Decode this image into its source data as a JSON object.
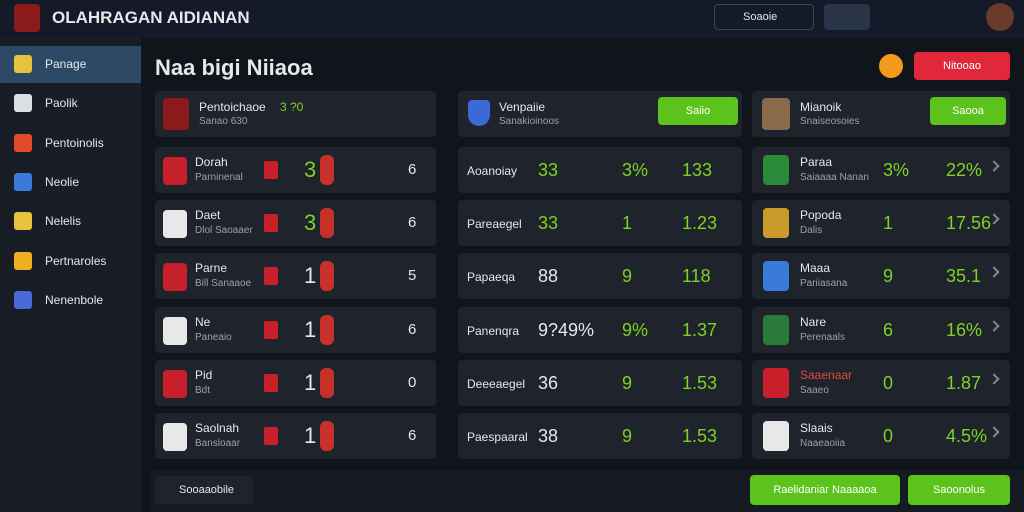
{
  "header": {
    "brand": "OLAHRAGAN AIDIANAN",
    "search": "Soaoie"
  },
  "sidebar": [
    "Panage",
    "Paolik",
    "Pentoinolis",
    "Neolie",
    "Nelelis",
    "Pertnaroles",
    "Nenenbole"
  ],
  "title": "Naa bigi Niiaoa",
  "action": "Nitooao",
  "teams": {
    "header": {
      "name": "Pentoichaoe",
      "score": "3 ?0",
      "sub": "Sanao 630"
    },
    "rows": [
      [
        "Dorah",
        "Parninenal",
        "3",
        "6"
      ],
      [
        "Daet",
        "Dlol Saoaaer",
        "3",
        "6"
      ],
      [
        "Parne",
        "Bill Sanaaoe",
        "1",
        "5"
      ],
      [
        "Ne",
        "Paneaio",
        "1",
        "6"
      ],
      [
        "Pid",
        "Bdt",
        "1",
        "0"
      ],
      [
        "Saolnah",
        "Bansloaar",
        "1",
        "6"
      ]
    ]
  },
  "stats": {
    "header": {
      "name": "Venpaiie",
      "sub": "Sanakioinoos",
      "button": "Saiio"
    },
    "rows": [
      [
        "Aoanoiay",
        "33",
        "3%",
        "133"
      ],
      [
        "Pareaegel",
        "33",
        "1",
        "1.23"
      ],
      [
        "Papaeqa",
        "88",
        "9",
        "118"
      ],
      [
        "Panenqra",
        "9?49%",
        "9%",
        "1.37"
      ],
      [
        "Deeeaegel",
        "36",
        "9",
        "1.53"
      ],
      [
        "Paespaaral",
        "38",
        "9",
        "1.53"
      ]
    ]
  },
  "players": {
    "header": {
      "name": "Mianoik",
      "sub": "Snaiseosoies",
      "button": "Saooa"
    },
    "rows": [
      [
        "Paraa",
        "Saiaaaa Nanan",
        "3%",
        "22%"
      ],
      [
        "Popoda",
        "Dalis",
        "1",
        "17.56"
      ],
      [
        "Maaa",
        "Pariiasana",
        "9",
        "35.1"
      ],
      [
        "Nare",
        "Perenaals",
        "6",
        "16%"
      ],
      [
        "Saaenaar",
        "Saaeo",
        "0",
        "1.87"
      ],
      [
        "Slaais",
        "Naaeaoiia",
        "0",
        "4.5%"
      ]
    ]
  },
  "footer": {
    "left": "Sooaaobile",
    "primary": "Raelidaniar Naaaaoa",
    "secondary": "Saoonolus"
  }
}
